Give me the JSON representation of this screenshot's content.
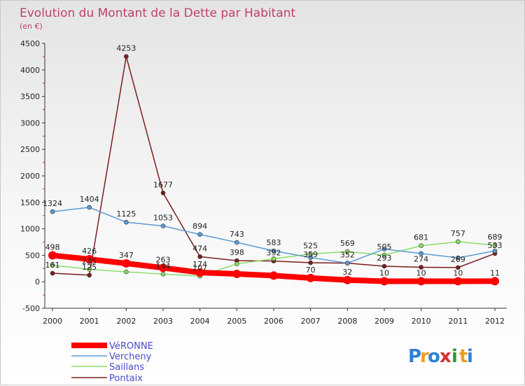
{
  "chart_data": {
    "type": "line",
    "title": "Evolution du Montant de la Dette par Habitant",
    "subtitle": "(en €)",
    "x": [
      "2000",
      "2001",
      "2002",
      "2003",
      "2004",
      "2005",
      "2006",
      "2007",
      "2008",
      "2009",
      "2010",
      "2011",
      "2012"
    ],
    "ylim": [
      -500,
      4500
    ],
    "yticks": [
      -500,
      0,
      500,
      1000,
      1500,
      2000,
      2500,
      3000,
      3500,
      4000,
      4500
    ],
    "grid": false,
    "legend_position": "bottom-left",
    "series": [
      {
        "name": "VéRONNE",
        "color": "#ff0000",
        "values": [
          498,
          426,
          347,
          263,
          174,
          148,
          116,
          70,
          32,
          10,
          10,
          10,
          11
        ],
        "labels": [
          "498",
          "426",
          "347",
          "263",
          "174",
          "",
          "",
          "70",
          "32",
          "10",
          "10",
          "10",
          "11"
        ]
      },
      {
        "name": "Vercheny",
        "color": "#5b9bd5",
        "values": [
          1324,
          1404,
          1125,
          1053,
          894,
          743,
          583,
          457,
          352,
          617,
          534,
          451,
          583
        ],
        "labels": [
          "1324",
          "1404",
          "1125",
          "1053",
          "894",
          "743",
          "583",
          "",
          "",
          "",
          "",
          "",
          ""
        ]
      },
      {
        "name": "Saillans",
        "color": "#88dd66",
        "values": [
          313,
          235,
          187,
          144,
          107,
          337,
          434,
          525,
          569,
          505,
          681,
          757,
          689
        ],
        "labels": [
          "",
          "235",
          "",
          "144",
          "107",
          "",
          "",
          "525",
          "569",
          "505",
          "681",
          "757",
          "689"
        ]
      },
      {
        "name": "Pontaix",
        "color": "#7a1e1e",
        "values": [
          161,
          125,
          4253,
          1677,
          474,
          398,
          392,
          359,
          352,
          293,
          274,
          269,
          533
        ],
        "labels": [
          "161",
          "125",
          "4253",
          "1677",
          "474",
          "398",
          "392",
          "359",
          "352",
          "293",
          "274",
          "269",
          "533"
        ]
      }
    ]
  },
  "logo": {
    "text": "Proxiti",
    "letters": [
      "P",
      "r",
      "o",
      "x",
      "i",
      "t",
      "i"
    ],
    "colors": [
      "#2f7fd6",
      "#e8a020",
      "#2f7fd6",
      "#d63030",
      "#2f9a30",
      "#e8a020",
      "#2f7fd6"
    ]
  }
}
